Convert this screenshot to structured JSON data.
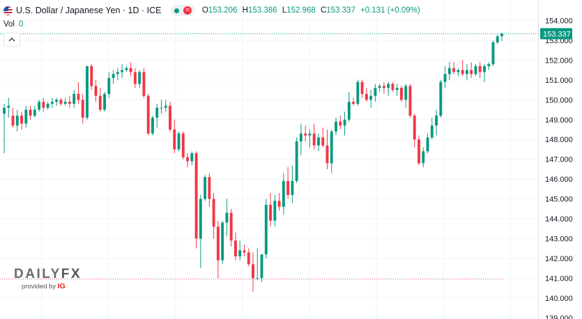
{
  "header": {
    "title": "U.S. Dollar / Japanese Yen · 1D · ICE",
    "ohlc": [
      {
        "key": "O",
        "value": "153.206"
      },
      {
        "key": "H",
        "value": "153.386"
      },
      {
        "key": "L",
        "value": "152.968"
      },
      {
        "key": "C",
        "value": "153.337"
      }
    ],
    "change": "+0.131 (+0.09%)",
    "volume_label": "Vol",
    "volume_value": "0"
  },
  "colors": {
    "up": "#089981",
    "down": "#f23645",
    "grid": "#f0f3fa",
    "axis_text": "#131722"
  },
  "branding": {
    "brand_text": "DAILY",
    "brand_text_2": "FX",
    "provided_by": "provided by",
    "provider": "IG"
  },
  "chart_data": {
    "type": "candlestick",
    "ylim": [
      139.0,
      154.0
    ],
    "y_ticks": [
      "154.000",
      "153.000",
      "152.000",
      "151.000",
      "150.000",
      "149.000",
      "148.000",
      "147.000",
      "146.000",
      "145.000",
      "144.000",
      "143.000",
      "142.000",
      "141.000",
      "140.000",
      "139.000"
    ],
    "last_price": 153.337,
    "last_price_label": "153.337",
    "reference_line": 140.95,
    "grid": true,
    "candles": [
      [
        149.3,
        149.8,
        147.3,
        149.6
      ],
      [
        149.6,
        150.1,
        149.1,
        149.7
      ],
      [
        149.2,
        149.6,
        148.6,
        148.7
      ],
      [
        148.7,
        149.5,
        148.4,
        149.2
      ],
      [
        149.2,
        149.4,
        148.5,
        148.8
      ],
      [
        148.8,
        149.7,
        148.6,
        149.5
      ],
      [
        149.5,
        149.7,
        149.0,
        149.2
      ],
      [
        149.2,
        149.7,
        149.1,
        149.5
      ],
      [
        149.5,
        150.0,
        149.4,
        149.9
      ],
      [
        149.9,
        150.1,
        149.4,
        149.6
      ],
      [
        149.6,
        149.9,
        149.5,
        149.8
      ],
      [
        149.8,
        150.1,
        149.6,
        149.9
      ],
      [
        149.9,
        150.1,
        149.7,
        150.0
      ],
      [
        150.0,
        150.1,
        149.7,
        149.8
      ],
      [
        149.8,
        150.1,
        149.7,
        149.9
      ],
      [
        149.9,
        150.2,
        149.6,
        149.8
      ],
      [
        149.8,
        150.5,
        149.6,
        150.3
      ],
      [
        150.3,
        150.9,
        149.8,
        150.0
      ],
      [
        150.0,
        150.3,
        148.8,
        149.1
      ],
      [
        149.1,
        151.7,
        149.0,
        151.7
      ],
      [
        151.7,
        151.8,
        150.5,
        150.7
      ],
      [
        150.7,
        151.0,
        149.9,
        150.2
      ],
      [
        150.2,
        150.6,
        149.4,
        149.5
      ],
      [
        149.5,
        150.4,
        149.4,
        150.3
      ],
      [
        150.3,
        151.4,
        150.1,
        151.1
      ],
      [
        151.1,
        151.5,
        150.8,
        151.3
      ],
      [
        151.3,
        151.6,
        151.0,
        151.4
      ],
      [
        151.4,
        151.8,
        151.1,
        151.5
      ],
      [
        151.5,
        151.7,
        151.4,
        151.6
      ],
      [
        151.6,
        151.9,
        151.2,
        151.4
      ],
      [
        151.4,
        151.6,
        150.6,
        150.8
      ],
      [
        150.8,
        151.5,
        150.6,
        151.4
      ],
      [
        151.4,
        151.6,
        150.1,
        150.2
      ],
      [
        150.2,
        150.3,
        148.2,
        148.3
      ],
      [
        148.3,
        149.2,
        148.2,
        149.1
      ],
      [
        149.1,
        149.8,
        148.6,
        149.6
      ],
      [
        149.6,
        150.0,
        149.3,
        149.6
      ],
      [
        149.6,
        150.0,
        149.4,
        149.7
      ],
      [
        149.7,
        149.9,
        148.4,
        148.5
      ],
      [
        148.5,
        149.0,
        147.3,
        147.5
      ],
      [
        147.5,
        148.4,
        147.4,
        148.3
      ],
      [
        148.3,
        148.4,
        147.0,
        147.1
      ],
      [
        147.1,
        147.3,
        146.6,
        146.9
      ],
      [
        146.9,
        147.4,
        146.7,
        147.3
      ],
      [
        147.3,
        147.4,
        142.5,
        143.0
      ],
      [
        143.0,
        145.2,
        141.5,
        145.0
      ],
      [
        145.0,
        146.2,
        144.9,
        146.1
      ],
      [
        146.1,
        146.3,
        144.6,
        145.0
      ],
      [
        145.0,
        145.3,
        143.0,
        143.6
      ],
      [
        143.6,
        143.9,
        141.0,
        141.9
      ],
      [
        141.9,
        143.9,
        141.7,
        143.8
      ],
      [
        143.8,
        145.0,
        143.1,
        144.3
      ],
      [
        144.3,
        144.5,
        142.6,
        142.9
      ],
      [
        142.9,
        143.3,
        141.9,
        142.1
      ],
      [
        142.1,
        142.9,
        141.9,
        142.4
      ],
      [
        142.4,
        142.7,
        142.1,
        142.3
      ],
      [
        142.3,
        142.5,
        141.6,
        141.7
      ],
      [
        141.7,
        142.3,
        140.3,
        141.0
      ],
      [
        141.0,
        142.5,
        140.9,
        141.0
      ],
      [
        141.0,
        142.2,
        140.8,
        142.2
      ],
      [
        142.2,
        145.0,
        142.0,
        144.7
      ],
      [
        144.7,
        145.3,
        143.6,
        143.9
      ],
      [
        143.9,
        145.2,
        143.6,
        144.9
      ],
      [
        144.9,
        145.3,
        144.4,
        144.6
      ],
      [
        144.6,
        146.3,
        144.2,
        145.9
      ],
      [
        145.9,
        146.6,
        145.0,
        145.2
      ],
      [
        145.2,
        146.7,
        144.8,
        145.9
      ],
      [
        145.9,
        148.1,
        145.8,
        147.9
      ],
      [
        147.9,
        148.8,
        147.2,
        148.3
      ],
      [
        148.3,
        148.7,
        147.9,
        148.2
      ],
      [
        148.2,
        148.5,
        147.6,
        148.3
      ],
      [
        148.3,
        148.8,
        147.5,
        147.7
      ],
      [
        147.7,
        148.3,
        147.4,
        148.1
      ],
      [
        148.1,
        148.6,
        147.6,
        147.7
      ],
      [
        147.7,
        148.5,
        146.5,
        146.8
      ],
      [
        146.8,
        148.5,
        146.3,
        148.4
      ],
      [
        148.4,
        149.1,
        148.2,
        148.9
      ],
      [
        148.9,
        149.2,
        148.5,
        148.7
      ],
      [
        148.7,
        149.4,
        148.2,
        149.0
      ],
      [
        149.0,
        150.4,
        148.9,
        149.9
      ],
      [
        149.9,
        150.1,
        149.7,
        149.8
      ],
      [
        149.8,
        151.0,
        149.7,
        150.9
      ],
      [
        150.9,
        151.0,
        150.1,
        150.3
      ],
      [
        150.3,
        150.6,
        149.9,
        150.0
      ],
      [
        150.0,
        150.5,
        149.6,
        150.2
      ],
      [
        150.2,
        150.8,
        149.9,
        150.6
      ],
      [
        150.6,
        150.8,
        150.4,
        150.7
      ],
      [
        150.7,
        150.9,
        150.3,
        150.6
      ],
      [
        150.6,
        150.9,
        150.2,
        150.8
      ],
      [
        150.8,
        150.9,
        150.4,
        150.5
      ],
      [
        150.5,
        150.8,
        150.2,
        150.6
      ],
      [
        150.6,
        150.7,
        149.9,
        150.0
      ],
      [
        150.0,
        150.8,
        149.6,
        150.7
      ],
      [
        150.7,
        150.8,
        149.1,
        149.2
      ],
      [
        149.2,
        149.3,
        147.6,
        148.0
      ],
      [
        148.0,
        148.2,
        146.7,
        146.8
      ],
      [
        146.8,
        147.6,
        146.6,
        147.4
      ],
      [
        147.4,
        148.3,
        147.3,
        148.1
      ],
      [
        148.1,
        149.1,
        148.0,
        148.7
      ],
      [
        148.7,
        149.5,
        148.2,
        149.2
      ],
      [
        149.2,
        151.0,
        149.1,
        150.9
      ],
      [
        150.9,
        151.7,
        150.6,
        151.3
      ],
      [
        151.3,
        151.9,
        151.0,
        151.6
      ],
      [
        151.6,
        151.9,
        151.3,
        151.4
      ],
      [
        151.4,
        151.6,
        151.2,
        151.5
      ],
      [
        151.5,
        152.0,
        151.2,
        151.3
      ],
      [
        151.3,
        151.8,
        151.0,
        151.5
      ],
      [
        151.5,
        151.9,
        151.1,
        151.3
      ],
      [
        151.3,
        151.8,
        151.2,
        151.7
      ],
      [
        151.7,
        151.9,
        151.1,
        151.4
      ],
      [
        151.4,
        151.8,
        150.9,
        151.7
      ],
      [
        151.7,
        151.9,
        151.5,
        151.8
      ],
      [
        151.8,
        153.0,
        151.7,
        152.9
      ],
      [
        152.9,
        153.3,
        152.8,
        153.2
      ],
      [
        153.206,
        153.386,
        152.968,
        153.337
      ]
    ]
  }
}
